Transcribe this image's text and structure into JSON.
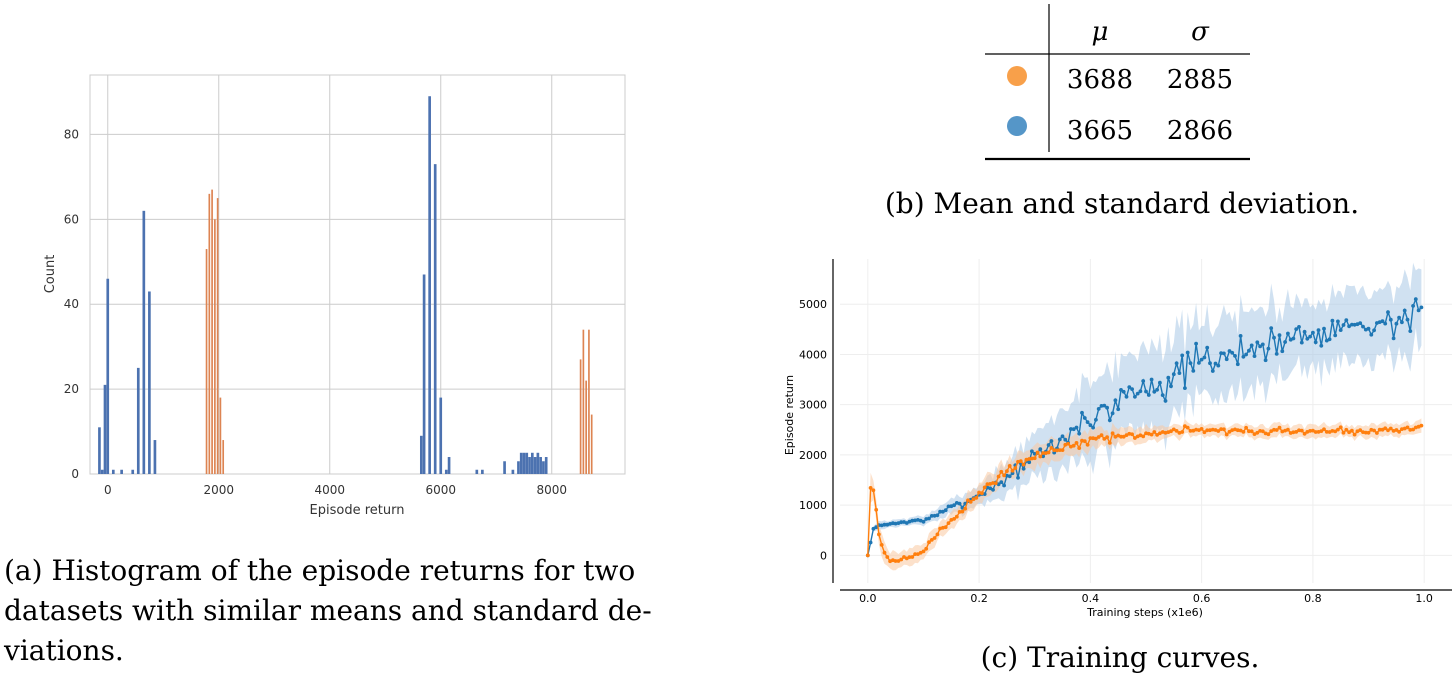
{
  "chart_data": [
    {
      "type": "bar",
      "panel": "histogram",
      "xlabel": "Episode return",
      "ylabel": "Count",
      "xlim": [
        -320,
        9320
      ],
      "ylim": [
        0,
        94
      ],
      "x_ticks": [
        0,
        2000,
        4000,
        6000,
        8000
      ],
      "y_ticks": [
        0,
        20,
        40,
        60,
        80
      ],
      "grid": true,
      "series": [
        {
          "name": "blue",
          "color": "#4c72b0",
          "bar_width": 48,
          "bars": [
            {
              "x": -150,
              "y": 11
            },
            {
              "x": -100,
              "y": 1
            },
            {
              "x": -50,
              "y": 21
            },
            {
              "x": 0,
              "y": 46
            },
            {
              "x": 100,
              "y": 1
            },
            {
              "x": 250,
              "y": 1
            },
            {
              "x": 450,
              "y": 1
            },
            {
              "x": 550,
              "y": 25
            },
            {
              "x": 650,
              "y": 62
            },
            {
              "x": 750,
              "y": 43
            },
            {
              "x": 850,
              "y": 8
            },
            {
              "x": 5650,
              "y": 9
            },
            {
              "x": 5700,
              "y": 47
            },
            {
              "x": 5800,
              "y": 89
            },
            {
              "x": 5900,
              "y": 73
            },
            {
              "x": 6000,
              "y": 18
            },
            {
              "x": 6100,
              "y": 1
            },
            {
              "x": 6150,
              "y": 4
            },
            {
              "x": 6650,
              "y": 1
            },
            {
              "x": 6750,
              "y": 1
            },
            {
              "x": 7150,
              "y": 3
            },
            {
              "x": 7300,
              "y": 1
            },
            {
              "x": 7400,
              "y": 3
            },
            {
              "x": 7450,
              "y": 5
            },
            {
              "x": 7500,
              "y": 5
            },
            {
              "x": 7550,
              "y": 5
            },
            {
              "x": 7600,
              "y": 4
            },
            {
              "x": 7650,
              "y": 5
            },
            {
              "x": 7700,
              "y": 4
            },
            {
              "x": 7750,
              "y": 5
            },
            {
              "x": 7800,
              "y": 4
            },
            {
              "x": 7850,
              "y": 3
            },
            {
              "x": 7900,
              "y": 4
            }
          ]
        },
        {
          "name": "orange",
          "color": "#dd8452",
          "bar_width": 30,
          "bars": [
            {
              "x": 1780,
              "y": 53
            },
            {
              "x": 1830,
              "y": 66
            },
            {
              "x": 1880,
              "y": 67
            },
            {
              "x": 1930,
              "y": 60
            },
            {
              "x": 1980,
              "y": 65
            },
            {
              "x": 2030,
              "y": 18
            },
            {
              "x": 2080,
              "y": 8
            },
            {
              "x": 8520,
              "y": 27
            },
            {
              "x": 8570,
              "y": 34
            },
            {
              "x": 8620,
              "y": 22
            },
            {
              "x": 8670,
              "y": 34
            },
            {
              "x": 8720,
              "y": 14
            }
          ]
        }
      ]
    },
    {
      "type": "table",
      "panel": "stats",
      "columns": [
        "",
        "μ",
        "σ"
      ],
      "rows": [
        {
          "marker_color": "#f8a04a",
          "mu": "3688",
          "sigma": "2885"
        },
        {
          "marker_color": "#5596c8",
          "mu": "3665",
          "sigma": "2866"
        }
      ]
    },
    {
      "type": "line",
      "panel": "training",
      "xlabel": "Training steps (x1e6)",
      "ylabel": "Episode return",
      "xlim": [
        -0.05,
        1.05
      ],
      "ylim": [
        -550,
        5900
      ],
      "x_ticks": [
        0.0,
        0.2,
        0.4,
        0.6,
        0.8,
        1.0
      ],
      "y_ticks": [
        0,
        1000,
        2000,
        3000,
        4000,
        5000
      ],
      "grid": true,
      "series": [
        {
          "name": "blue",
          "color": "#1f77b4",
          "band_color": "#a9c9e6",
          "x_start": 0.0,
          "x_end": 0.995,
          "step": 0.005,
          "anchors": [
            [
              0.0,
              0
            ],
            [
              0.01,
              520
            ],
            [
              0.02,
              600
            ],
            [
              0.05,
              640
            ],
            [
              0.1,
              700
            ],
            [
              0.15,
              950
            ],
            [
              0.2,
              1200
            ],
            [
              0.25,
              1550
            ],
            [
              0.3,
              1950
            ],
            [
              0.35,
              2300
            ],
            [
              0.4,
              2750
            ],
            [
              0.45,
              3050
            ],
            [
              0.5,
              3350
            ],
            [
              0.55,
              3550
            ],
            [
              0.6,
              3800
            ],
            [
              0.65,
              4000
            ],
            [
              0.7,
              4150
            ],
            [
              0.75,
              4300
            ],
            [
              0.8,
              4450
            ],
            [
              0.85,
              4550
            ],
            [
              0.9,
              4600
            ],
            [
              0.95,
              4650
            ],
            [
              1.0,
              4750
            ]
          ],
          "band_anchors": [
            [
              0.0,
              30
            ],
            [
              0.02,
              70
            ],
            [
              0.1,
              80
            ],
            [
              0.2,
              200
            ],
            [
              0.3,
              450
            ],
            [
              0.4,
              750
            ],
            [
              0.5,
              850
            ],
            [
              0.6,
              800
            ],
            [
              0.7,
              750
            ],
            [
              0.8,
              700
            ],
            [
              0.9,
              700
            ],
            [
              1.0,
              700
            ]
          ],
          "noise_anchors": [
            [
              0.0,
              10
            ],
            [
              0.1,
              25
            ],
            [
              0.2,
              70
            ],
            [
              0.3,
              120
            ],
            [
              0.4,
              200
            ],
            [
              0.5,
              250
            ],
            [
              0.6,
              260
            ],
            [
              0.7,
              230
            ],
            [
              0.8,
              230
            ],
            [
              1.0,
              230
            ]
          ],
          "seed": 7
        },
        {
          "name": "orange",
          "color": "#ff7f0e",
          "band_color": "#f9c9a0",
          "x_start": 0.0,
          "x_end": 0.995,
          "step": 0.005,
          "anchors": [
            [
              0.0,
              0
            ],
            [
              0.005,
              1350
            ],
            [
              0.01,
              1300
            ],
            [
              0.015,
              900
            ],
            [
              0.02,
              400
            ],
            [
              0.03,
              50
            ],
            [
              0.04,
              -100
            ],
            [
              0.05,
              -120
            ],
            [
              0.07,
              -60
            ],
            [
              0.1,
              100
            ],
            [
              0.13,
              500
            ],
            [
              0.17,
              900
            ],
            [
              0.2,
              1250
            ],
            [
              0.25,
              1700
            ],
            [
              0.3,
              1950
            ],
            [
              0.35,
              2150
            ],
            [
              0.4,
              2300
            ],
            [
              0.45,
              2350
            ],
            [
              0.5,
              2400
            ],
            [
              0.55,
              2480
            ],
            [
              0.6,
              2500
            ],
            [
              0.7,
              2480
            ],
            [
              0.8,
              2470
            ],
            [
              0.9,
              2460
            ],
            [
              1.0,
              2560
            ]
          ],
          "band_anchors": [
            [
              0.0,
              50
            ],
            [
              0.005,
              250
            ],
            [
              0.03,
              200
            ],
            [
              0.1,
              150
            ],
            [
              0.2,
              200
            ],
            [
              0.3,
              220
            ],
            [
              0.4,
              180
            ],
            [
              0.5,
              150
            ],
            [
              0.6,
              120
            ],
            [
              0.8,
              120
            ],
            [
              1.0,
              120
            ]
          ],
          "noise_anchors": [
            [
              0.0,
              10
            ],
            [
              0.05,
              30
            ],
            [
              0.2,
              50
            ],
            [
              0.3,
              70
            ],
            [
              0.4,
              60
            ],
            [
              0.6,
              50
            ],
            [
              1.0,
              50
            ]
          ],
          "seed": 21
        }
      ]
    }
  ],
  "captions": {
    "a": "(a) Histogram of the episode returns for two datasets with similar means and standard deviations.",
    "a_lines": [
      "(a) Histogram of the episode returns for two",
      "datasets with similar means and standard de-",
      "viations."
    ],
    "b": "(b) Mean and standard deviation.",
    "c": "(c) Training curves."
  }
}
